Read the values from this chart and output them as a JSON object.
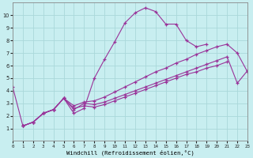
{
  "xlabel": "Windchill (Refroidissement éolien,°C)",
  "background_color": "#c8eef0",
  "grid_color": "#aad8da",
  "line_color": "#993399",
  "xlim": [
    0,
    23
  ],
  "ylim": [
    0,
    11
  ],
  "xticks": [
    0,
    1,
    2,
    3,
    4,
    5,
    6,
    7,
    8,
    9,
    10,
    11,
    12,
    13,
    14,
    15,
    16,
    17,
    18,
    19,
    20,
    21,
    22,
    23
  ],
  "yticks": [
    1,
    2,
    3,
    4,
    5,
    6,
    7,
    8,
    9,
    10
  ],
  "series": [
    {
      "x": [
        0,
        1,
        2,
        3,
        4,
        5,
        6,
        7,
        8,
        9,
        10,
        11,
        12,
        13,
        14,
        15,
        16,
        17,
        18,
        19
      ],
      "y": [
        4.3,
        1.2,
        1.5,
        2.2,
        2.5,
        3.4,
        2.2,
        2.6,
        5.0,
        6.5,
        7.9,
        9.4,
        10.2,
        10.6,
        10.3,
        9.3,
        9.3,
        8.0,
        7.5,
        7.7
      ]
    },
    {
      "x": [
        1,
        2,
        3,
        4,
        5,
        6,
        7,
        8,
        9,
        10,
        11,
        12,
        13,
        14,
        15,
        16,
        17,
        18,
        19,
        20,
        21,
        22,
        23
      ],
      "y": [
        1.2,
        1.5,
        2.2,
        2.5,
        3.4,
        2.8,
        3.1,
        3.2,
        3.5,
        3.9,
        4.3,
        4.7,
        5.1,
        5.5,
        5.8,
        6.2,
        6.5,
        6.9,
        7.2,
        7.5,
        7.7,
        7.0,
        5.5
      ]
    },
    {
      "x": [
        1,
        2,
        3,
        4,
        5,
        6,
        7,
        8,
        9,
        10,
        11,
        12,
        13,
        14,
        15,
        16,
        17,
        18,
        19,
        20,
        21,
        22,
        23
      ],
      "y": [
        1.2,
        1.5,
        2.2,
        2.5,
        3.4,
        2.5,
        3.0,
        2.9,
        3.1,
        3.4,
        3.7,
        4.0,
        4.3,
        4.6,
        4.9,
        5.2,
        5.5,
        5.8,
        6.1,
        6.4,
        6.7,
        4.6,
        5.6
      ]
    },
    {
      "x": [
        1,
        2,
        3,
        4,
        5,
        6,
        7,
        8,
        9,
        10,
        11,
        12,
        13,
        14,
        15,
        16,
        17,
        18,
        19,
        20,
        21
      ],
      "y": [
        1.2,
        1.5,
        2.2,
        2.5,
        3.4,
        2.6,
        2.8,
        2.7,
        2.9,
        3.2,
        3.5,
        3.8,
        4.1,
        4.4,
        4.7,
        5.0,
        5.3,
        5.5,
        5.8,
        6.0,
        6.3
      ]
    }
  ]
}
